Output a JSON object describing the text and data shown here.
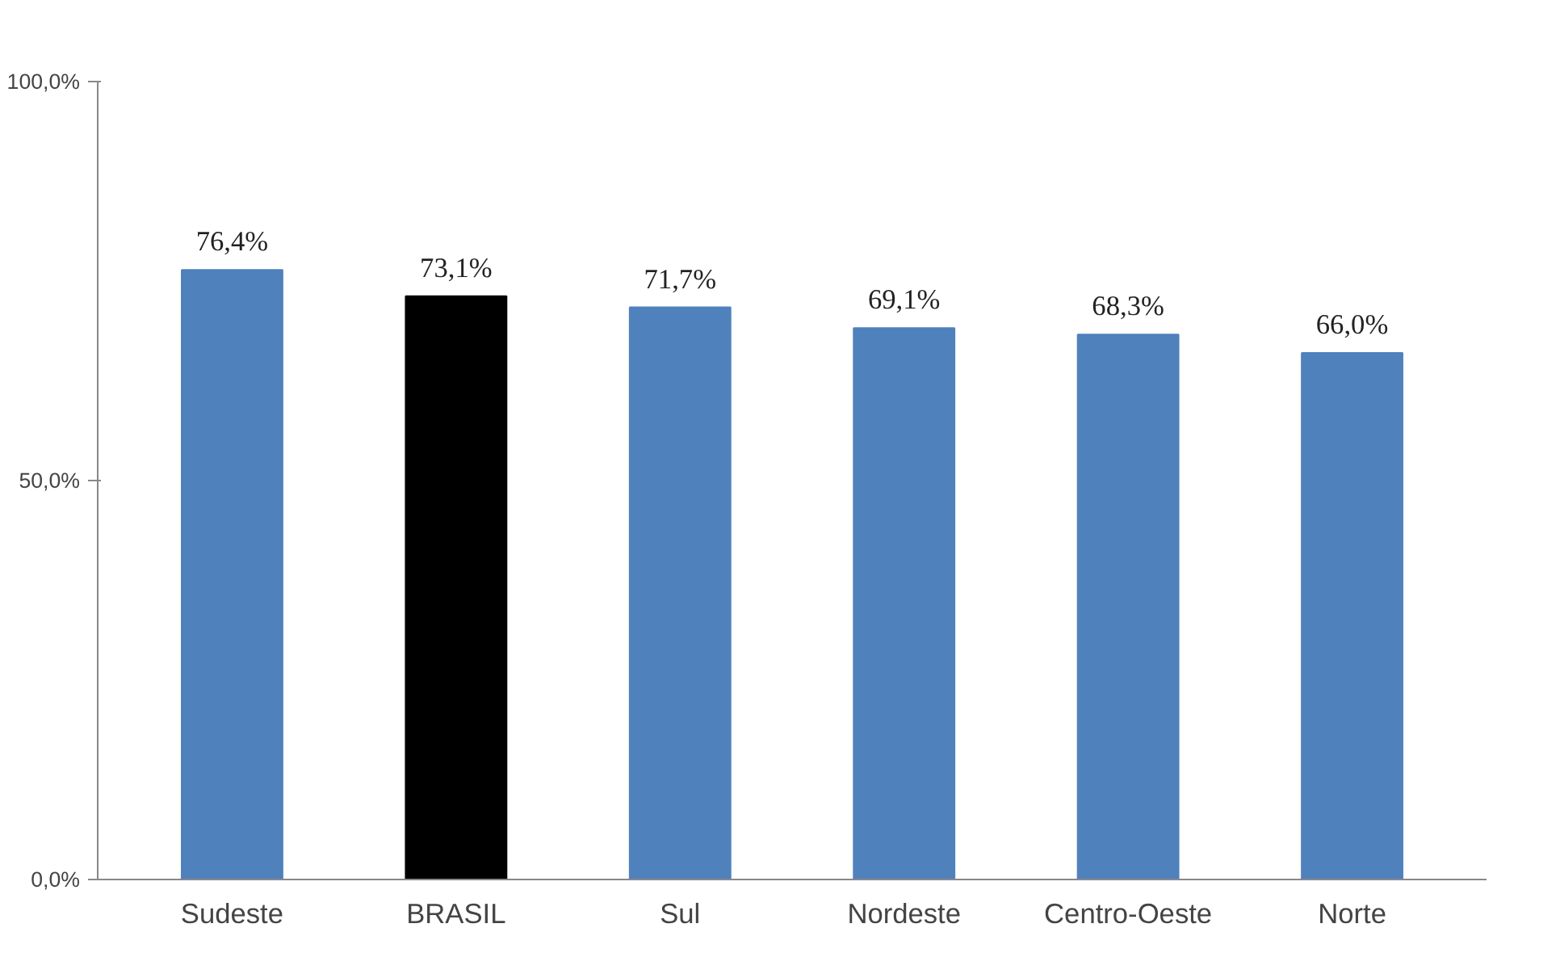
{
  "chart_data": {
    "type": "bar",
    "categories": [
      "Sudeste",
      "BRASIL",
      "Sul",
      "Nordeste",
      "Centro-Oeste",
      "Norte"
    ],
    "values": [
      76.4,
      73.1,
      71.7,
      69.1,
      68.3,
      66.0
    ],
    "colors": [
      "#4f81bd",
      "#000000",
      "#4f81bd",
      "#4f81bd",
      "#4f81bd",
      "#4f81bd"
    ],
    "value_labels": [
      "76,4%",
      "73,1%",
      "71,7%",
      "69,1%",
      "68,3%",
      "66,0%"
    ],
    "ylim": [
      0,
      100
    ],
    "yticks": [
      {
        "value": 0,
        "label": "0,0%"
      },
      {
        "value": 50,
        "label": "50,0%"
      },
      {
        "value": 100,
        "label": "100,0%"
      }
    ],
    "grid": false
  }
}
